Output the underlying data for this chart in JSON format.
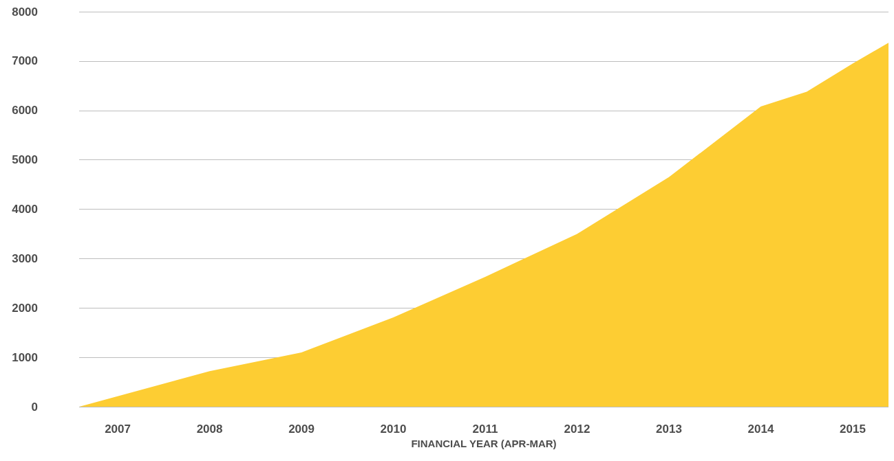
{
  "chart_data": {
    "type": "area",
    "xlabel": "FINANCIAL YEAR (APR-MAR)",
    "x": [
      2006.58,
      2008,
      2009,
      2010,
      2011,
      2012,
      2013,
      2014,
      2014.5,
      2015,
      2015.39
    ],
    "series": [
      {
        "color": "#fdcd33",
        "values": [
          0,
          720,
          1100,
          1810,
          2630,
          3500,
          4650,
          6080,
          6380,
          6950,
          7370
        ]
      }
    ],
    "xlim": [
      2006.58,
      2015.39
    ],
    "xticks": [
      2007,
      2008,
      2009,
      2010,
      2011,
      2012,
      2013,
      2014,
      2015
    ],
    "ylim": [
      0,
      8000
    ],
    "yticks": [
      0,
      1000,
      2000,
      3000,
      4000,
      5000,
      6000,
      7000,
      8000
    ],
    "grid": "y",
    "marker": "none"
  }
}
